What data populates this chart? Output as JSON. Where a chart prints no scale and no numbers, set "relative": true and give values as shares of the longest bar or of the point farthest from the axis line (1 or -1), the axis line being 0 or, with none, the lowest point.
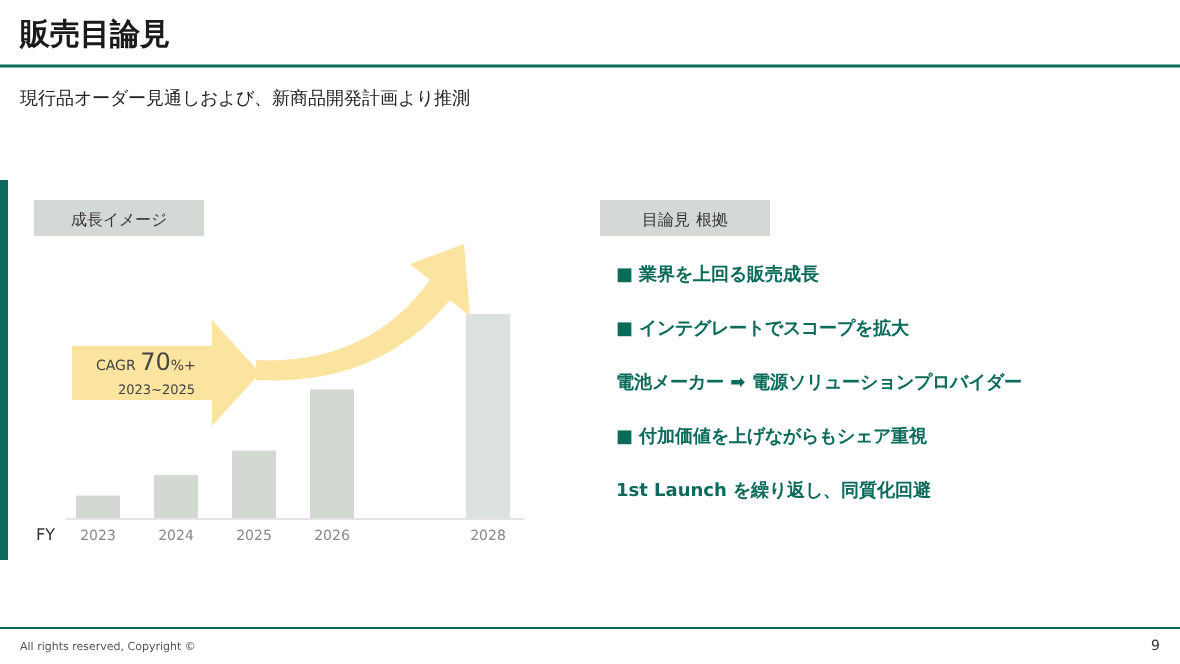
{
  "chart_data": [
    {
      "type": "other",
      "title": "販売目論見",
      "subtitle": "現行品オーダー見通しおよび、新商品開発計画より推測",
      "annotations": [
        "All rights reserved, Copyright ©",
        "9"
      ]
    },
    {
      "type": "bar",
      "relative": true,
      "title": "成長イメージ",
      "xlabel": "FY",
      "categories": [
        "2023",
        "2024",
        "2025",
        "2026",
        null,
        "2028"
      ],
      "values": [
        0.11,
        0.21,
        0.33,
        0.63,
        null,
        1
      ],
      "colors": [
        "#d3d8d2",
        "#d3d8d2",
        "#d3d8d2",
        "#d3d8d2",
        null,
        "#dde2df"
      ],
      "annotations": [
        "CAGR 70%+",
        "2023~2025"
      ]
    },
    {
      "type": "other",
      "title": "目論見 根拠",
      "annotations": [
        "■ 業界を上回る販売成長",
        "■ インテグレートでスコープを拡大",
        "電池メーカー ➡ 電源ソリューションプロバイダー",
        "■ 付加価値を上げながらもシェア重視",
        "1st Launch を繰り返し、同質化回避"
      ]
    }
  ]
}
